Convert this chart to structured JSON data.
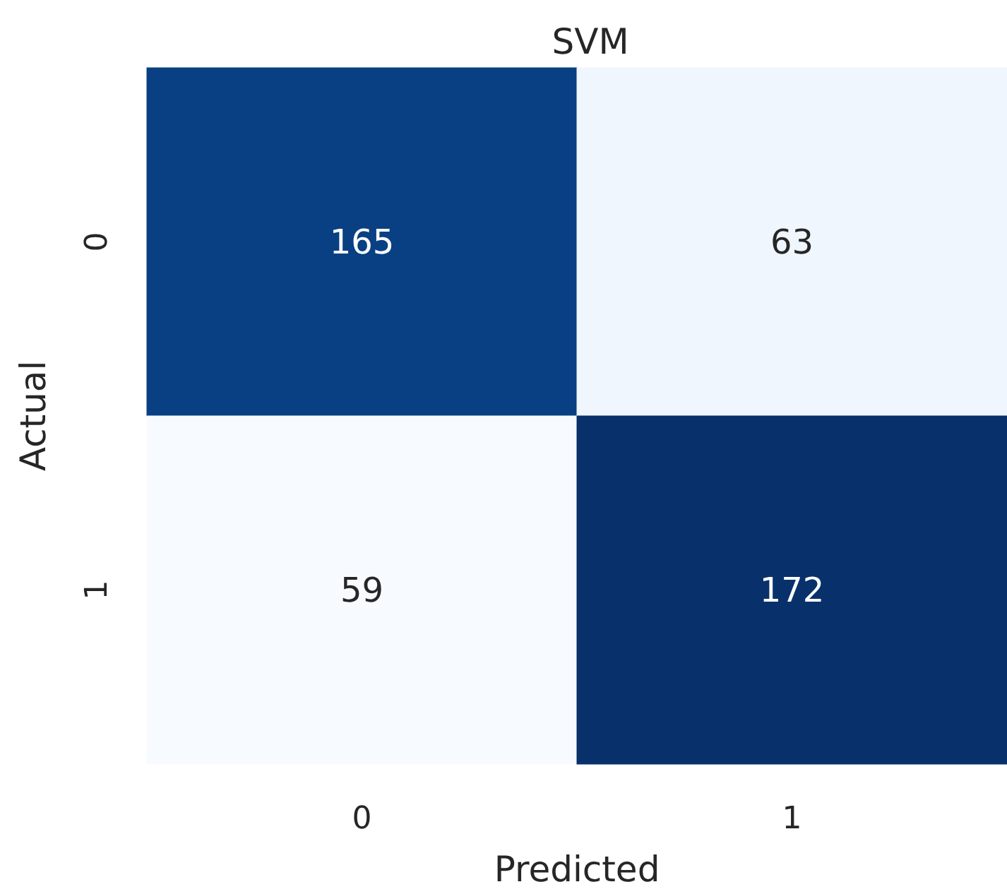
{
  "chart_data": {
    "type": "heatmap",
    "title": "SVM",
    "xlabel": "Predicted",
    "ylabel": "Actual",
    "categories": [
      "0",
      "1"
    ],
    "y_categories": [
      "0",
      "1"
    ],
    "cells": [
      [
        165,
        63
      ],
      [
        59,
        172
      ]
    ],
    "data_labels": true
  }
}
